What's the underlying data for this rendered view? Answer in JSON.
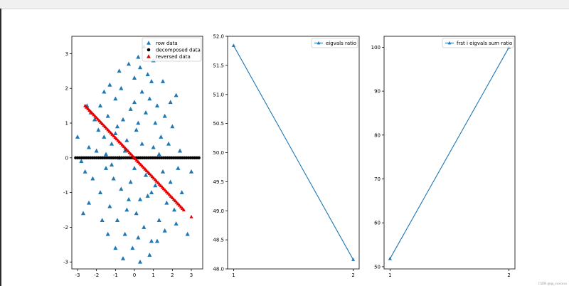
{
  "watermark": "CSDN @qq_xxxxxxx",
  "chart_data": [
    {
      "type": "scatter",
      "title": "",
      "xlabel": "",
      "ylabel": "",
      "xlim": [
        -3.3,
        3.6
      ],
      "ylim": [
        -3.2,
        3.5
      ],
      "xticks": [
        -3,
        -2,
        -1,
        0,
        1,
        2,
        3
      ],
      "yticks": [
        -3,
        -2,
        -1,
        0,
        1,
        2,
        3
      ],
      "legend_position": "top-right",
      "series": [
        {
          "name": "row data",
          "marker": "triangle",
          "color": "#1f77b4",
          "points": [
            [
              -2.5,
              1.5
            ],
            [
              -2.3,
              1.3
            ],
            [
              -2.1,
              1.1
            ],
            [
              -1.8,
              1.5
            ],
            [
              -1.9,
              0.8
            ],
            [
              -1.6,
              0.6
            ],
            [
              -1.4,
              1.2
            ],
            [
              -1.2,
              0.4
            ],
            [
              -1.0,
              1.7
            ],
            [
              -0.9,
              0.9
            ],
            [
              -0.7,
              2.0
            ],
            [
              -0.6,
              1.1
            ],
            [
              -0.4,
              0.5
            ],
            [
              -0.2,
              1.4
            ],
            [
              0.0,
              2.3
            ],
            [
              0.1,
              0.8
            ],
            [
              0.3,
              2.6
            ],
            [
              0.4,
              1.9
            ],
            [
              0.5,
              3.2
            ],
            [
              0.6,
              1.3
            ],
            [
              0.8,
              1.7
            ],
            [
              0.9,
              2.2
            ],
            [
              1.1,
              1.0
            ],
            [
              1.2,
              1.5
            ],
            [
              1.4,
              0.6
            ],
            [
              1.6,
              1.2
            ],
            [
              1.8,
              0.4
            ],
            [
              2.0,
              0.9
            ],
            [
              2.2,
              1.8
            ],
            [
              2.4,
              0.2
            ],
            [
              -3.0,
              0.6
            ],
            [
              -2.8,
              -0.1
            ],
            [
              -2.6,
              -0.4
            ],
            [
              -2.4,
              0.3
            ],
            [
              -2.2,
              -0.6
            ],
            [
              -2.0,
              0.2
            ],
            [
              -1.8,
              -1.0
            ],
            [
              -1.5,
              -0.3
            ],
            [
              -1.3,
              -1.4
            ],
            [
              -1.1,
              -0.6
            ],
            [
              -0.9,
              -1.8
            ],
            [
              -0.7,
              -0.9
            ],
            [
              -0.5,
              -2.2
            ],
            [
              -0.3,
              -1.2
            ],
            [
              -0.1,
              -2.6
            ],
            [
              0.1,
              -1.6
            ],
            [
              0.3,
              -3.0
            ],
            [
              0.5,
              -2.0
            ],
            [
              0.7,
              -1.1
            ],
            [
              0.9,
              -2.4
            ],
            [
              1.1,
              -0.8
            ],
            [
              1.3,
              -1.8
            ],
            [
              1.5,
              -0.4
            ],
            [
              1.7,
              -1.3
            ],
            [
              1.9,
              -0.7
            ],
            [
              2.1,
              -1.5
            ],
            [
              2.3,
              -0.3
            ],
            [
              2.5,
              -1.0
            ],
            [
              2.8,
              -2.2
            ],
            [
              3.0,
              -0.4
            ],
            [
              -1.4,
              -2.2
            ],
            [
              -1.0,
              -2.6
            ],
            [
              -0.6,
              -2.9
            ],
            [
              0.2,
              -2.3
            ],
            [
              0.8,
              -2.8
            ],
            [
              1.2,
              -2.4
            ],
            [
              1.6,
              -2.1
            ],
            [
              2.2,
              -1.9
            ],
            [
              -2.4,
              -1.3
            ],
            [
              -2.7,
              -1.6
            ],
            [
              -1.7,
              -1.8
            ],
            [
              -0.8,
              2.5
            ],
            [
              -0.3,
              2.7
            ],
            [
              0.2,
              2.9
            ],
            [
              0.7,
              2.4
            ],
            [
              1.0,
              2.8
            ],
            [
              -1.3,
              2.1
            ],
            [
              -1.6,
              1.9
            ],
            [
              1.5,
              2.2
            ],
            [
              1.9,
              1.6
            ],
            [
              -0.5,
              0.2
            ],
            [
              0.0,
              -0.3
            ],
            [
              0.4,
              0.4
            ],
            [
              -0.2,
              -0.7
            ],
            [
              0.6,
              -0.5
            ],
            [
              -0.8,
              0.0
            ],
            [
              1.0,
              0.3
            ],
            [
              -1.2,
              -0.2
            ],
            [
              0.2,
              1.0
            ],
            [
              -0.4,
              -1.5
            ],
            [
              0.9,
              -1.0
            ],
            [
              -1.0,
              0.7
            ],
            [
              1.3,
              0.1
            ],
            [
              -1.5,
              0.1
            ],
            [
              0.0,
              1.6
            ],
            [
              0.3,
              -1.2
            ]
          ]
        },
        {
          "name": "decomposed data",
          "marker": "circle",
          "color": "#000000",
          "x_range": [
            -3.1,
            3.4
          ],
          "y": 0
        },
        {
          "name": "reversed data",
          "marker": "triangle",
          "color": "#e00000",
          "line_from": [
            -2.6,
            1.5
          ],
          "line_to": [
            2.6,
            -1.5
          ],
          "extra_points": [
            [
              3.0,
              -1.7
            ]
          ]
        }
      ]
    },
    {
      "type": "line",
      "title": "",
      "xlabel": "",
      "ylabel": "",
      "xlim": [
        0.95,
        2.05
      ],
      "ylim": [
        48.0,
        52.0
      ],
      "xticks": [
        1,
        2
      ],
      "yticks": [
        "48.0",
        "48.5",
        "49.0",
        "49.5",
        "50.0",
        "50.5",
        "51.0",
        "51.5",
        "52.0"
      ],
      "legend_position": "top-right",
      "series": [
        {
          "name": "eigvals ratio",
          "marker": "triangle",
          "color": "#1f77b4",
          "x": [
            1,
            2
          ],
          "values": [
            51.84,
            48.16
          ]
        }
      ]
    },
    {
      "type": "line",
      "title": "",
      "xlabel": "",
      "ylabel": "",
      "xlim": [
        0.95,
        2.05
      ],
      "ylim": [
        49.5,
        102.5
      ],
      "xticks": [
        1,
        2
      ],
      "yticks": [
        "50",
        "60",
        "70",
        "80",
        "90",
        "100"
      ],
      "legend_position": "top-right",
      "series": [
        {
          "name": "frst i eigvals sum ratio",
          "marker": "triangle",
          "color": "#1f77b4",
          "x": [
            1,
            2
          ],
          "values": [
            51.84,
            100.0
          ]
        }
      ]
    }
  ]
}
